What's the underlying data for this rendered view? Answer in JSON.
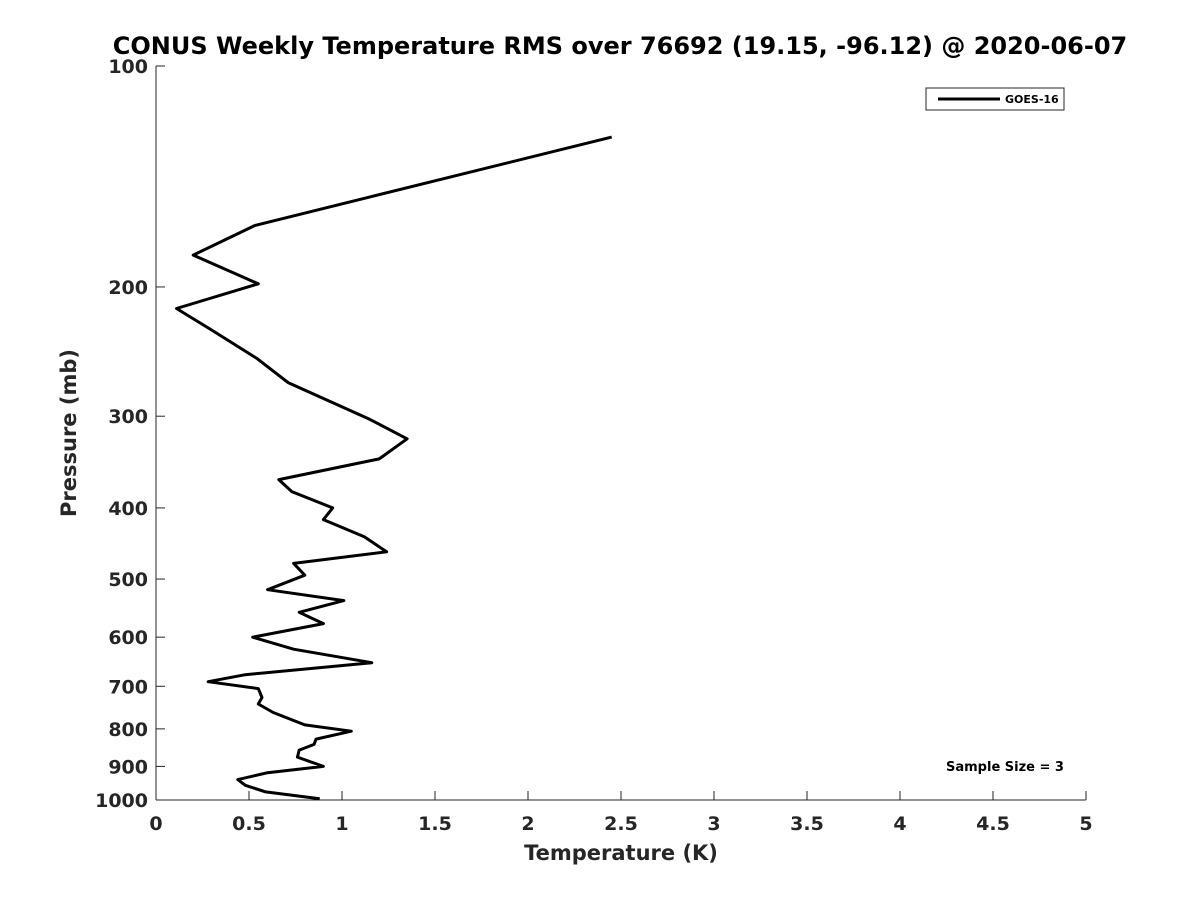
{
  "chart_data": {
    "type": "line",
    "title": "CONUS Weekly Temperature RMS over 76692 (19.15, -96.12) @ 2020-06-07",
    "xlabel": "Temperature (K)",
    "ylabel": "Pressure (mb)",
    "xlim": [
      0,
      5
    ],
    "ylim": [
      100,
      1000
    ],
    "y_scale": "log",
    "y_reversed": true,
    "xticks": [
      0,
      0.5,
      1,
      1.5,
      2,
      2.5,
      3,
      3.5,
      4,
      4.5,
      5
    ],
    "xtick_labels": [
      "0",
      "0.5",
      "1",
      "1.5",
      "2",
      "2.5",
      "3",
      "3.5",
      "4",
      "4.5",
      "5"
    ],
    "yticks": [
      100,
      200,
      300,
      400,
      500,
      600,
      700,
      800,
      900,
      1000
    ],
    "ytick_labels": [
      "100",
      "200",
      "300",
      "400",
      "500",
      "600",
      "700",
      "800",
      "900",
      "1000"
    ],
    "grid": false,
    "legend_position": "top-right",
    "annotation": "Sample Size = 3",
    "series": [
      {
        "name": "GOES-16",
        "color": "#000000",
        "points": [
          [
            2.45,
            125
          ],
          [
            1.14,
            151
          ],
          [
            0.53,
            165
          ],
          [
            0.2,
            181
          ],
          [
            0.55,
            198
          ],
          [
            0.11,
            214
          ],
          [
            0.3,
            229
          ],
          [
            0.54,
            250
          ],
          [
            0.71,
            270
          ],
          [
            1.15,
            303
          ],
          [
            1.35,
            322
          ],
          [
            1.2,
            343
          ],
          [
            0.66,
            366
          ],
          [
            0.73,
            380
          ],
          [
            0.95,
            400
          ],
          [
            0.9,
            415
          ],
          [
            1.12,
            438
          ],
          [
            1.24,
            459
          ],
          [
            0.74,
            476
          ],
          [
            0.8,
            494
          ],
          [
            0.6,
            517
          ],
          [
            1.01,
            535
          ],
          [
            0.77,
            555
          ],
          [
            0.9,
            575
          ],
          [
            0.52,
            600
          ],
          [
            0.74,
            623
          ],
          [
            1.16,
            650
          ],
          [
            0.48,
            675
          ],
          [
            0.28,
            690
          ],
          [
            0.55,
            705
          ],
          [
            0.57,
            725
          ],
          [
            0.55,
            740
          ],
          [
            0.63,
            760
          ],
          [
            0.8,
            790
          ],
          [
            1.05,
            806
          ],
          [
            0.86,
            826
          ],
          [
            0.85,
            840
          ],
          [
            0.77,
            855
          ],
          [
            0.76,
            874
          ],
          [
            0.9,
            900
          ],
          [
            0.6,
            918
          ],
          [
            0.44,
            938
          ],
          [
            0.48,
            955
          ],
          [
            0.59,
            975
          ],
          [
            0.88,
            996
          ]
        ]
      }
    ]
  }
}
